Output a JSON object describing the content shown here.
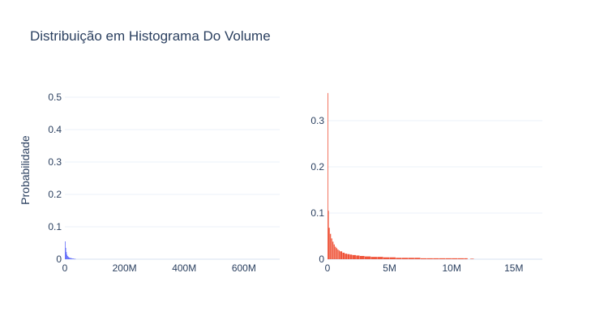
{
  "title": "Distribuição em Histograma Do Volume",
  "ylabel": "Probabilidade",
  "colors": {
    "left": "#636efa",
    "right": "#ef553b",
    "text": "#2a3f5f",
    "grid": "#ebf0f8"
  },
  "chart_data": [
    {
      "type": "bar",
      "subplot": "left",
      "xlim": [
        0,
        720000000
      ],
      "ylim": [
        0,
        0.52
      ],
      "x_ticks": [
        {
          "value": 0,
          "label": "0"
        },
        {
          "value": 200000000,
          "label": "200M"
        },
        {
          "value": 400000000,
          "label": "400M"
        },
        {
          "value": 600000000,
          "label": "600M"
        }
      ],
      "y_ticks": [
        {
          "value": 0,
          "label": "0"
        },
        {
          "value": 0.1,
          "label": "0.1"
        },
        {
          "value": 0.2,
          "label": "0.2"
        },
        {
          "value": 0.3,
          "label": "0.3"
        },
        {
          "value": 0.4,
          "label": "0.4"
        },
        {
          "value": 0.5,
          "label": "0.5"
        }
      ],
      "bins": [
        {
          "x0": 0,
          "x1": 2000000,
          "value": 0.055
        },
        {
          "x0": 2000000,
          "x1": 4000000,
          "value": 0.035
        },
        {
          "x0": 4000000,
          "x1": 6000000,
          "value": 0.022
        },
        {
          "x0": 6000000,
          "x1": 8000000,
          "value": 0.014
        },
        {
          "x0": 8000000,
          "x1": 10000000,
          "value": 0.01
        },
        {
          "x0": 10000000,
          "x1": 12000000,
          "value": 0.008
        },
        {
          "x0": 12000000,
          "x1": 14000000,
          "value": 0.006
        },
        {
          "x0": 14000000,
          "x1": 16000000,
          "value": 0.005
        },
        {
          "x0": 16000000,
          "x1": 18000000,
          "value": 0.004
        },
        {
          "x0": 18000000,
          "x1": 20000000,
          "value": 0.004
        },
        {
          "x0": 20000000,
          "x1": 22000000,
          "value": 0.003
        },
        {
          "x0": 22000000,
          "x1": 24000000,
          "value": 0.003
        },
        {
          "x0": 24000000,
          "x1": 26000000,
          "value": 0.002
        },
        {
          "x0": 26000000,
          "x1": 28000000,
          "value": 0.002
        },
        {
          "x0": 28000000,
          "x1": 30000000,
          "value": 0.002
        },
        {
          "x0": 30000000,
          "x1": 32000000,
          "value": 0.001
        },
        {
          "x0": 32000000,
          "x1": 34000000,
          "value": 0.001
        },
        {
          "x0": 34000000,
          "x1": 36000000,
          "value": 0.001
        }
      ]
    },
    {
      "type": "bar",
      "subplot": "right",
      "xlim": [
        0,
        17300000
      ],
      "ylim": [
        0,
        0.365
      ],
      "x_ticks": [
        {
          "value": 0,
          "label": "0"
        },
        {
          "value": 5000000,
          "label": "5M"
        },
        {
          "value": 10000000,
          "label": "10M"
        },
        {
          "value": 15000000,
          "label": "15M"
        }
      ],
      "y_ticks": [
        {
          "value": 0,
          "label": "0"
        },
        {
          "value": 0.1,
          "label": "0.1"
        },
        {
          "value": 0.2,
          "label": "0.2"
        },
        {
          "value": 0.3,
          "label": "0.3"
        }
      ],
      "bins": [
        {
          "x0": 0,
          "x1": 50000,
          "value": 0.36
        },
        {
          "x0": 50000,
          "x1": 100000,
          "value": 0.105
        },
        {
          "x0": 100000,
          "x1": 200000,
          "value": 0.068
        },
        {
          "x0": 200000,
          "x1": 300000,
          "value": 0.055
        },
        {
          "x0": 300000,
          "x1": 400000,
          "value": 0.045
        },
        {
          "x0": 400000,
          "x1": 500000,
          "value": 0.038
        },
        {
          "x0": 500000,
          "x1": 600000,
          "value": 0.032
        },
        {
          "x0": 600000,
          "x1": 700000,
          "value": 0.027
        },
        {
          "x0": 700000,
          "x1": 800000,
          "value": 0.024
        },
        {
          "x0": 800000,
          "x1": 900000,
          "value": 0.021
        },
        {
          "x0": 900000,
          "x1": 1000000,
          "value": 0.019
        },
        {
          "x0": 1000000,
          "x1": 1200000,
          "value": 0.017
        },
        {
          "x0": 1200000,
          "x1": 1400000,
          "value": 0.014
        },
        {
          "x0": 1400000,
          "x1": 1600000,
          "value": 0.012
        },
        {
          "x0": 1600000,
          "x1": 1800000,
          "value": 0.011
        },
        {
          "x0": 1800000,
          "x1": 2000000,
          "value": 0.01
        },
        {
          "x0": 2000000,
          "x1": 2300000,
          "value": 0.009
        },
        {
          "x0": 2300000,
          "x1": 2600000,
          "value": 0.008
        },
        {
          "x0": 2600000,
          "x1": 3000000,
          "value": 0.007
        },
        {
          "x0": 3000000,
          "x1": 3500000,
          "value": 0.006
        },
        {
          "x0": 3500000,
          "x1": 4000000,
          "value": 0.005
        },
        {
          "x0": 4000000,
          "x1": 4500000,
          "value": 0.005
        },
        {
          "x0": 4500000,
          "x1": 5000000,
          "value": 0.004
        },
        {
          "x0": 5000000,
          "x1": 5500000,
          "value": 0.004
        },
        {
          "x0": 5500000,
          "x1": 6000000,
          "value": 0.003
        },
        {
          "x0": 6000000,
          "x1": 6500000,
          "value": 0.003
        },
        {
          "x0": 6500000,
          "x1": 7000000,
          "value": 0.003
        },
        {
          "x0": 7000000,
          "x1": 7500000,
          "value": 0.003
        },
        {
          "x0": 7500000,
          "x1": 8000000,
          "value": 0.002
        },
        {
          "x0": 8000000,
          "x1": 8500000,
          "value": 0.002
        },
        {
          "x0": 8500000,
          "x1": 9000000,
          "value": 0.002
        },
        {
          "x0": 9000000,
          "x1": 9500000,
          "value": 0.002
        },
        {
          "x0": 9500000,
          "x1": 10000000,
          "value": 0.002
        },
        {
          "x0": 10000000,
          "x1": 10500000,
          "value": 0.002
        },
        {
          "x0": 10500000,
          "x1": 11000000,
          "value": 0.002
        },
        {
          "x0": 11000000,
          "x1": 11300000,
          "value": 0.002
        },
        {
          "x0": 11500000,
          "x1": 11800000,
          "value": 0.001
        }
      ]
    }
  ]
}
